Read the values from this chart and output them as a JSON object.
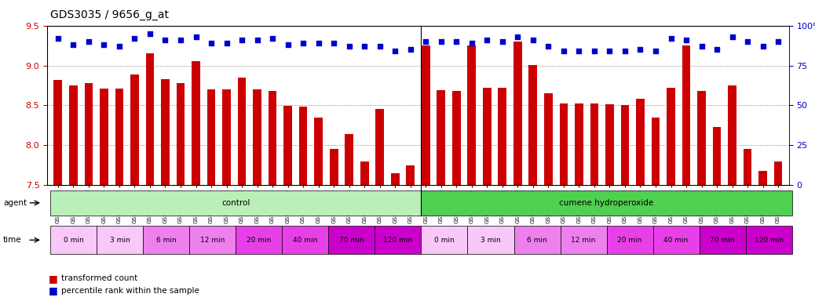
{
  "title": "GDS3035 / 9656_g_at",
  "ylim_left": [
    7.5,
    9.5
  ],
  "ylim_right": [
    0,
    100
  ],
  "yticks_left": [
    7.5,
    8.0,
    8.5,
    9.0,
    9.5
  ],
  "yticks_right": [
    0,
    25,
    50,
    75,
    100
  ],
  "bar_color": "#cc0000",
  "dot_color": "#0000cc",
  "sample_ids": [
    "GSM184944",
    "GSM184952",
    "GSM184960",
    "GSM184945",
    "GSM184953",
    "GSM184961",
    "GSM184946",
    "GSM184954",
    "GSM184962",
    "GSM184947",
    "GSM184955",
    "GSM184963",
    "GSM184948",
    "GSM184956",
    "GSM184964",
    "GSM184949",
    "GSM184957",
    "GSM184965",
    "GSM184950",
    "GSM184958",
    "GSM184966",
    "GSM184951",
    "GSM184959",
    "GSM184967",
    "GSM184968",
    "GSM184976",
    "GSM184984",
    "GSM184969",
    "GSM184977",
    "GSM184985",
    "GSM184970",
    "GSM184978",
    "GSM184986",
    "GSM184971",
    "GSM184979",
    "GSM184987",
    "GSM184972",
    "GSM184980",
    "GSM184988",
    "GSM184973",
    "GSM184981",
    "GSM184989",
    "GSM184974",
    "GSM184982",
    "GSM184990",
    "GSM184975",
    "GSM184983",
    "GSM184991"
  ],
  "bar_values": [
    8.82,
    8.75,
    8.78,
    8.71,
    8.71,
    8.89,
    9.15,
    8.83,
    8.78,
    9.05,
    8.7,
    8.7,
    8.85,
    8.7,
    8.68,
    8.49,
    8.48,
    8.35,
    7.95,
    8.14,
    7.8,
    8.45,
    7.65,
    7.75,
    9.25,
    8.69,
    8.68,
    9.25,
    8.72,
    8.72,
    9.3,
    9.01,
    8.65,
    8.52,
    8.52,
    8.52,
    8.51,
    8.5,
    8.58,
    8.35,
    8.72,
    9.25,
    8.68,
    8.23,
    8.75,
    7.95,
    7.68,
    7.8
  ],
  "dot_values_left": [
    92,
    88,
    90,
    88,
    87,
    92,
    95,
    91,
    91,
    93,
    89,
    89,
    91,
    91,
    92,
    88,
    89,
    89,
    89,
    87,
    87,
    87,
    84,
    85
  ],
  "dot_values_right": [
    90,
    90,
    90,
    89,
    91,
    90,
    93,
    91,
    87,
    84,
    84,
    84,
    84,
    84,
    85,
    84,
    92,
    91,
    87,
    85,
    93,
    90,
    87,
    90
  ],
  "agent_groups": [
    {
      "label": "control",
      "start": 0,
      "end": 24,
      "color": "#b8f0b8"
    },
    {
      "label": "cumene hydroperoxide",
      "start": 24,
      "end": 48,
      "color": "#50d050"
    }
  ],
  "time_groups_control": [
    {
      "label": "0 min",
      "start": 0,
      "end": 3
    },
    {
      "label": "3 min",
      "start": 3,
      "end": 6
    },
    {
      "label": "6 min",
      "start": 6,
      "end": 9
    },
    {
      "label": "12 min",
      "start": 9,
      "end": 12
    },
    {
      "label": "20 min",
      "start": 12,
      "end": 15
    },
    {
      "label": "40 min",
      "start": 15,
      "end": 18
    },
    {
      "label": "70 min",
      "start": 18,
      "end": 21
    },
    {
      "label": "120 min",
      "start": 21,
      "end": 24
    }
  ],
  "time_groups_cumene": [
    {
      "label": "0 min",
      "start": 24,
      "end": 27
    },
    {
      "label": "3 min",
      "start": 27,
      "end": 30
    },
    {
      "label": "6 min",
      "start": 30,
      "end": 33
    },
    {
      "label": "12 min",
      "start": 33,
      "end": 36
    },
    {
      "label": "20 min",
      "start": 36,
      "end": 39
    },
    {
      "label": "40 min",
      "start": 39,
      "end": 42
    },
    {
      "label": "70 min",
      "start": 42,
      "end": 45
    },
    {
      "label": "120 min",
      "start": 45,
      "end": 48
    }
  ],
  "time_colors": [
    "#f8c8f8",
    "#f8c8f8",
    "#ee80ee",
    "#ee80ee",
    "#e840e8",
    "#e840e8",
    "#cc00cc",
    "#cc00cc"
  ],
  "bg_color": "#ffffff"
}
